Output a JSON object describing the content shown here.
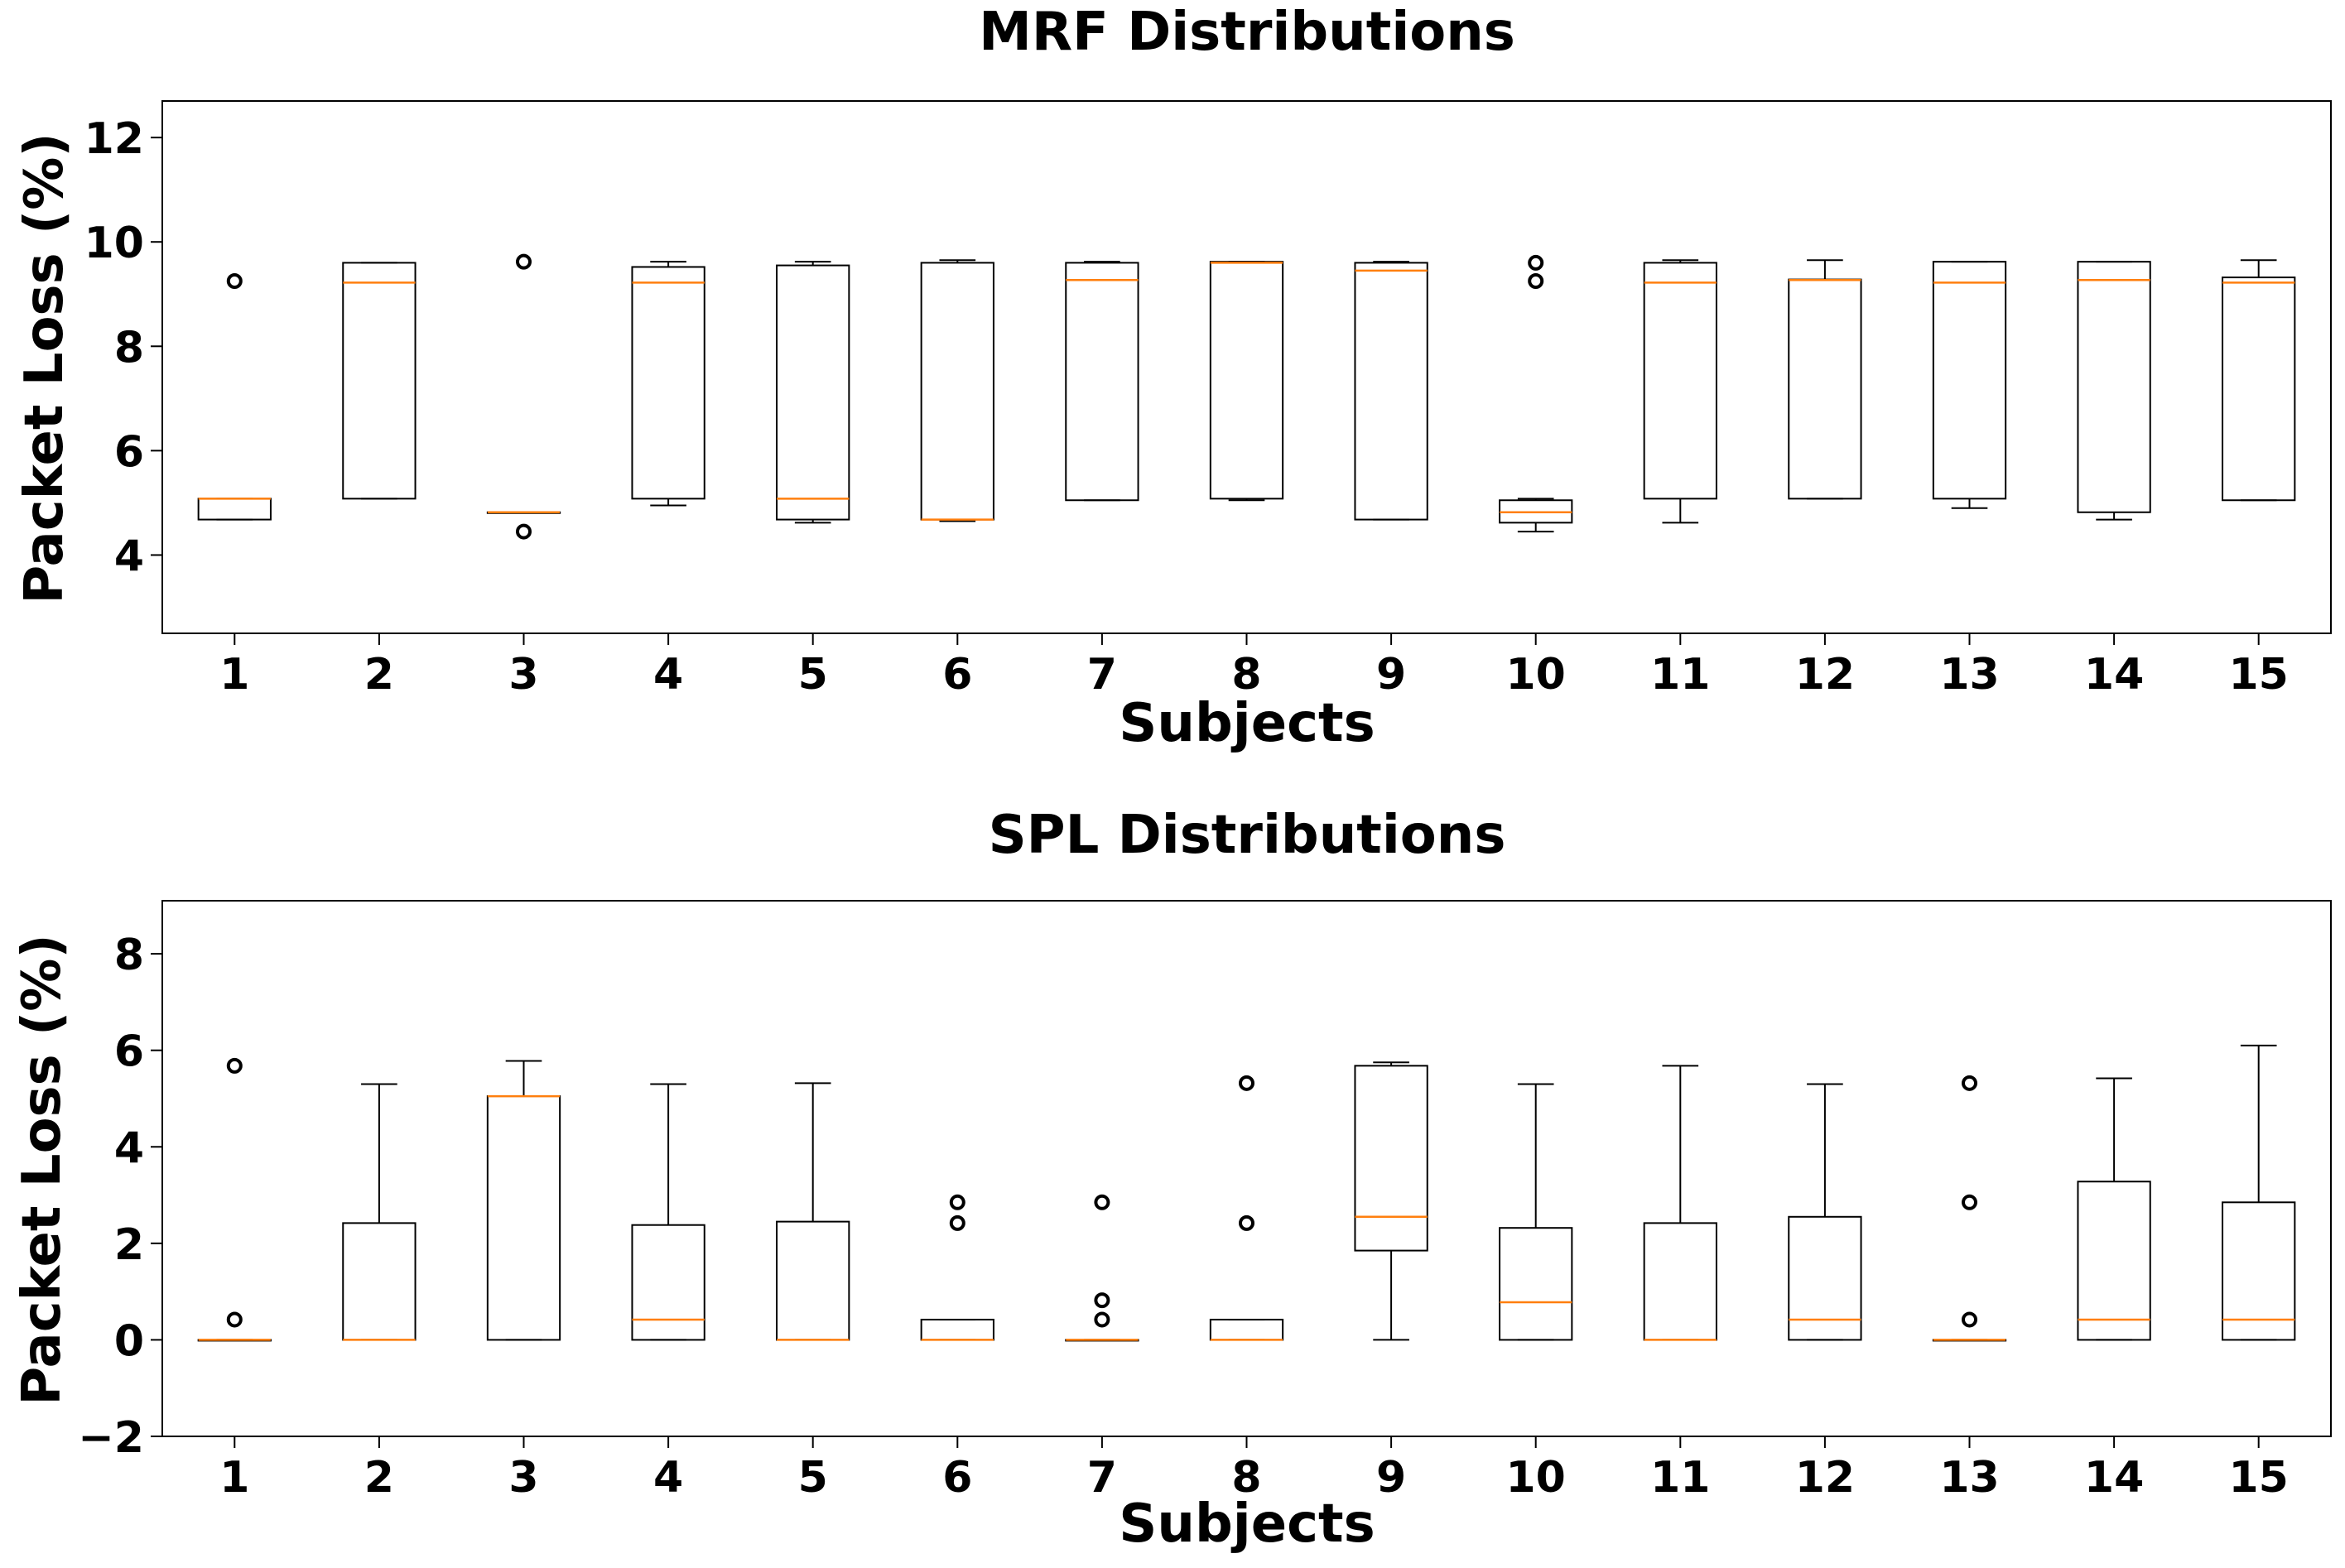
{
  "chart_data": [
    {
      "type": "box",
      "title": "MRF Distributions",
      "xlabel": "Subjects",
      "ylabel": "Packet Loss (%)",
      "ylim": [
        2.5,
        12.7
      ],
      "yticks": [
        4,
        6,
        8,
        10,
        12
      ],
      "categories": [
        "1",
        "2",
        "3",
        "4",
        "5",
        "6",
        "7",
        "8",
        "9",
        "10",
        "11",
        "12",
        "13",
        "14",
        "15"
      ],
      "boxes": [
        {
          "whisker_low": 4.68,
          "q1": 4.68,
          "median": 5.08,
          "q3": 5.08,
          "whisker_high": 5.08,
          "outliers": [
            9.25
          ]
        },
        {
          "whisker_low": 5.08,
          "q1": 5.08,
          "median": 9.22,
          "q3": 9.6,
          "whisker_high": 9.6,
          "outliers": []
        },
        {
          "whisker_low": 4.82,
          "q1": 4.82,
          "median": 4.82,
          "q3": 4.82,
          "whisker_high": 4.82,
          "outliers": [
            9.62,
            4.45
          ]
        },
        {
          "whisker_low": 4.95,
          "q1": 5.08,
          "median": 9.22,
          "q3": 9.52,
          "whisker_high": 9.62,
          "outliers": []
        },
        {
          "whisker_low": 4.62,
          "q1": 4.68,
          "median": 5.08,
          "q3": 9.55,
          "whisker_high": 9.62,
          "outliers": []
        },
        {
          "whisker_low": 4.65,
          "q1": 4.68,
          "median": 4.68,
          "q3": 9.6,
          "whisker_high": 9.65,
          "outliers": []
        },
        {
          "whisker_low": 5.05,
          "q1": 5.05,
          "median": 9.27,
          "q3": 9.6,
          "whisker_high": 9.62,
          "outliers": []
        },
        {
          "whisker_low": 5.05,
          "q1": 5.08,
          "median": 9.6,
          "q3": 9.62,
          "whisker_high": 9.62,
          "outliers": []
        },
        {
          "whisker_low": 4.68,
          "q1": 4.68,
          "median": 9.45,
          "q3": 9.6,
          "whisker_high": 9.62,
          "outliers": []
        },
        {
          "whisker_low": 4.45,
          "q1": 4.62,
          "median": 4.82,
          "q3": 5.05,
          "whisker_high": 5.08,
          "outliers": [
            9.6,
            9.25
          ]
        },
        {
          "whisker_low": 4.62,
          "q1": 5.08,
          "median": 9.22,
          "q3": 9.6,
          "whisker_high": 9.65,
          "outliers": []
        },
        {
          "whisker_low": 5.08,
          "q1": 5.08,
          "median": 9.27,
          "q3": 9.28,
          "whisker_high": 9.65,
          "outliers": []
        },
        {
          "whisker_low": 4.9,
          "q1": 5.08,
          "median": 9.22,
          "q3": 9.62,
          "whisker_high": 9.62,
          "outliers": []
        },
        {
          "whisker_low": 4.68,
          "q1": 4.82,
          "median": 9.27,
          "q3": 9.62,
          "whisker_high": 9.62,
          "outliers": []
        },
        {
          "whisker_low": 5.05,
          "q1": 5.05,
          "median": 9.22,
          "q3": 9.32,
          "whisker_high": 9.65,
          "outliers": []
        }
      ]
    },
    {
      "type": "box",
      "title": "SPL Distributions",
      "xlabel": "Subjects",
      "ylabel": "Packet Loss (%)",
      "ylim": [
        -2,
        9.1
      ],
      "yticks": [
        -2,
        0,
        2,
        4,
        6,
        8
      ],
      "categories": [
        "1",
        "2",
        "3",
        "4",
        "5",
        "6",
        "7",
        "8",
        "9",
        "10",
        "11",
        "12",
        "13",
        "14",
        "15"
      ],
      "boxes": [
        {
          "whisker_low": 0,
          "q1": 0,
          "median": 0,
          "q3": 0,
          "whisker_high": 0,
          "outliers": [
            5.68,
            0.42
          ]
        },
        {
          "whisker_low": 0,
          "q1": 0,
          "median": 0,
          "q3": 2.42,
          "whisker_high": 5.3,
          "outliers": []
        },
        {
          "whisker_low": 0,
          "q1": 0,
          "median": 5.05,
          "q3": 5.05,
          "whisker_high": 5.78,
          "outliers": []
        },
        {
          "whisker_low": 0,
          "q1": 0,
          "median": 0.42,
          "q3": 2.38,
          "whisker_high": 5.3,
          "outliers": []
        },
        {
          "whisker_low": 0,
          "q1": 0,
          "median": 0,
          "q3": 2.45,
          "whisker_high": 5.32,
          "outliers": []
        },
        {
          "whisker_low": 0,
          "q1": 0,
          "median": 0,
          "q3": 0.42,
          "whisker_high": 0.42,
          "outliers": [
            2.85,
            2.42
          ]
        },
        {
          "whisker_low": 0,
          "q1": 0,
          "median": 0,
          "q3": 0,
          "whisker_high": 0,
          "outliers": [
            2.85,
            0.82,
            0.42
          ]
        },
        {
          "whisker_low": 0,
          "q1": 0,
          "median": 0,
          "q3": 0.42,
          "whisker_high": 0.42,
          "outliers": [
            5.32,
            2.42
          ]
        },
        {
          "whisker_low": 0,
          "q1": 1.85,
          "median": 2.55,
          "q3": 5.68,
          "whisker_high": 5.75,
          "outliers": []
        },
        {
          "whisker_low": 0,
          "q1": 0,
          "median": 0.78,
          "q3": 2.32,
          "whisker_high": 5.3,
          "outliers": []
        },
        {
          "whisker_low": 0,
          "q1": 0,
          "median": 0,
          "q3": 2.42,
          "whisker_high": 5.68,
          "outliers": []
        },
        {
          "whisker_low": 0,
          "q1": 0,
          "median": 0.42,
          "q3": 2.55,
          "whisker_high": 5.3,
          "outliers": []
        },
        {
          "whisker_low": 0,
          "q1": 0,
          "median": 0,
          "q3": 0,
          "whisker_high": 0,
          "outliers": [
            5.32,
            2.85,
            0.42
          ]
        },
        {
          "whisker_low": 0,
          "q1": 0,
          "median": 0.42,
          "q3": 3.28,
          "whisker_high": 5.42,
          "outliers": []
        },
        {
          "whisker_low": 0,
          "q1": 0,
          "median": 0.42,
          "q3": 2.85,
          "whisker_high": 6.1,
          "outliers": []
        }
      ]
    }
  ],
  "colors": {
    "box_line": "#000000",
    "median_line": "#ff7f0e",
    "axes": "#000000",
    "background": "#ffffff"
  }
}
